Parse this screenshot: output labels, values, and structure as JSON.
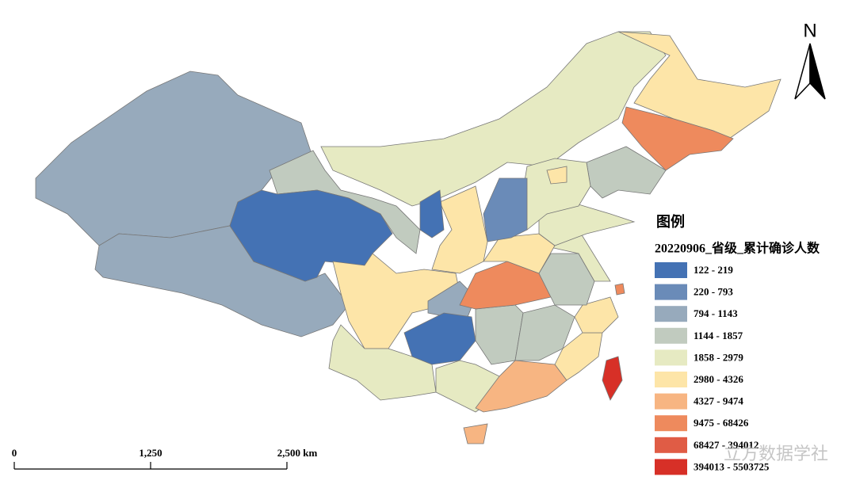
{
  "legend": {
    "title": "图例",
    "subtitle": "20220906_省级_累计确诊人数",
    "items": [
      {
        "label": "122 - 219",
        "color": "#4472b4"
      },
      {
        "label": "220 - 793",
        "color": "#6a8bb8"
      },
      {
        "label": "794 - 1143",
        "color": "#97aabc"
      },
      {
        "label": "1144 - 1857",
        "color": "#c1cbbf"
      },
      {
        "label": "1858 - 2979",
        "color": "#e6eac2"
      },
      {
        "label": "2980 - 4326",
        "color": "#fde5a8"
      },
      {
        "label": "4327 - 9474",
        "color": "#f7b582"
      },
      {
        "label": "9475 - 68426",
        "color": "#ee8a5d"
      },
      {
        "label": "68427 - 394012",
        "color": "#e05c45"
      },
      {
        "label": "394013 - 5503725",
        "color": "#d73027"
      }
    ]
  },
  "scale_bar": {
    "labels": [
      "0",
      "1,250",
      "2,500 km"
    ]
  },
  "north_arrow": {
    "label": "N"
  },
  "watermark": "立方数据学社"
}
